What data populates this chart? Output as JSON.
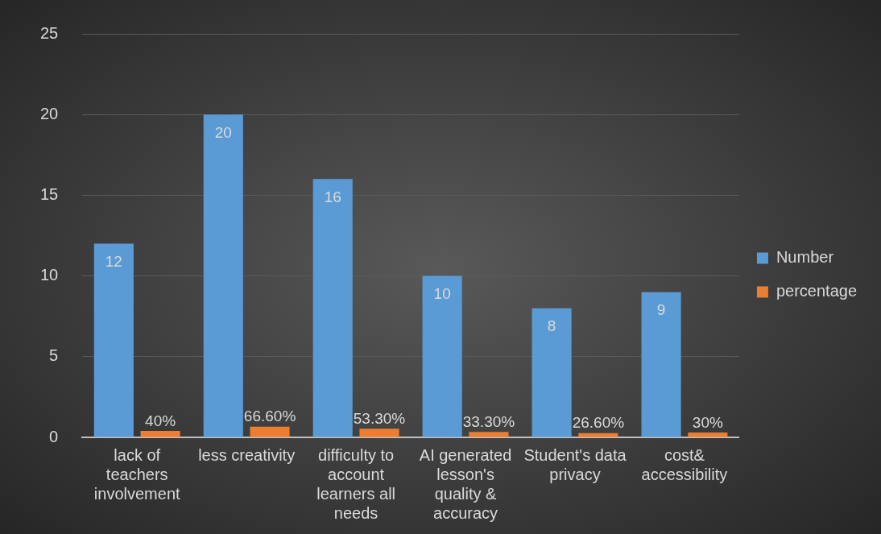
{
  "chart_data": {
    "type": "bar",
    "categories": [
      "lack of teachers involvement",
      "less creativity",
      "difficulty to account learners all needs",
      "AI generated lesson's quality & accuracy",
      "Student's data privacy",
      "cost& accessibility"
    ],
    "series": [
      {
        "name": "Number",
        "color": "#5b9bd5",
        "values": [
          12,
          20,
          16,
          10,
          8,
          9
        ],
        "value_labels": [
          "12",
          "20",
          "16",
          "10",
          "8",
          "9"
        ]
      },
      {
        "name": "percentage",
        "color": "#ed7d31",
        "values": [
          0.4,
          0.666,
          0.533,
          0.333,
          0.266,
          0.3
        ],
        "value_labels": [
          "40%",
          "66.60%",
          "53.30%",
          "33.30%",
          "26.60%",
          "30%"
        ]
      }
    ],
    "ylim": [
      0,
      25
    ],
    "yticks": [
      0,
      5,
      10,
      15,
      20,
      25
    ],
    "grid": "y",
    "legend": "right"
  }
}
